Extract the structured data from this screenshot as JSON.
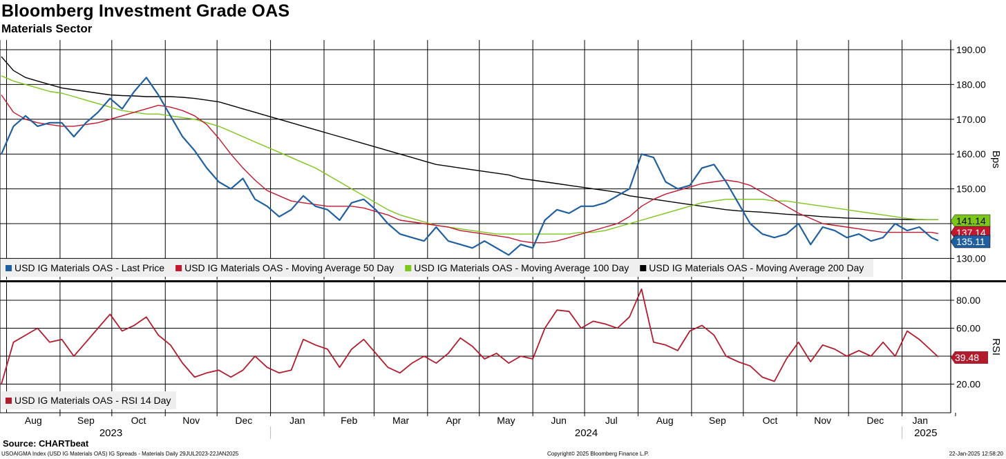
{
  "title": "Bloomberg Investment Grade OAS",
  "subtitle": "Materials Sector",
  "source": "Source: CHARTbeat",
  "footer": {
    "left": "USOAIGMA Index (USD IG Materials OAS) IG Spreads - Materials  Daily 29JUL2023-22JAN2025",
    "center": "Copyright© 2025 Bloomberg Finance L.P.",
    "right": "22-Jan-2025 12:58:20"
  },
  "colors": {
    "last_price": "#1f5fa0",
    "ma50": "#c0182e",
    "ma100": "#7cc51a",
    "ma200": "#000000",
    "rsi": "#b01c2e",
    "grid": "#000000"
  },
  "chart_data": [
    {
      "type": "line",
      "title": "Bloomberg Investment Grade OAS",
      "ylabel": "Bps",
      "ylim": [
        125,
        193
      ],
      "yticks": [
        "190.00",
        "180.00",
        "170.00",
        "160.00",
        "150.00",
        "140.00",
        "130.00"
      ],
      "x": [
        "2023-07-29",
        "2023-08-05",
        "2023-08-12",
        "2023-08-19",
        "2023-08-26",
        "2023-09-02",
        "2023-09-09",
        "2023-09-16",
        "2023-09-23",
        "2023-09-30",
        "2023-10-07",
        "2023-10-14",
        "2023-10-21",
        "2023-10-28",
        "2023-11-04",
        "2023-11-11",
        "2023-11-18",
        "2023-11-25",
        "2023-12-02",
        "2023-12-09",
        "2023-12-16",
        "2023-12-23",
        "2023-12-30",
        "2024-01-06",
        "2024-01-13",
        "2024-01-20",
        "2024-01-27",
        "2024-02-03",
        "2024-02-10",
        "2024-02-17",
        "2024-02-24",
        "2024-03-02",
        "2024-03-09",
        "2024-03-16",
        "2024-03-23",
        "2024-03-30",
        "2024-04-06",
        "2024-04-13",
        "2024-04-20",
        "2024-04-27",
        "2024-05-04",
        "2024-05-11",
        "2024-05-18",
        "2024-05-25",
        "2024-06-01",
        "2024-06-08",
        "2024-06-15",
        "2024-06-22",
        "2024-06-29",
        "2024-07-06",
        "2024-07-13",
        "2024-07-20",
        "2024-07-27",
        "2024-08-03",
        "2024-08-10",
        "2024-08-17",
        "2024-08-24",
        "2024-08-31",
        "2024-09-07",
        "2024-09-14",
        "2024-09-21",
        "2024-09-28",
        "2024-10-05",
        "2024-10-12",
        "2024-10-19",
        "2024-10-26",
        "2024-11-02",
        "2024-11-09",
        "2024-11-16",
        "2024-11-23",
        "2024-11-30",
        "2024-12-07",
        "2024-12-14",
        "2024-12-21",
        "2024-12-28",
        "2025-01-04",
        "2025-01-11",
        "2025-01-18",
        "2025-01-22"
      ],
      "series": [
        {
          "name": "USD IG Materials OAS - Last Price",
          "color": "#1f5fa0",
          "values": [
            160,
            168,
            171,
            168,
            169,
            169,
            165,
            169,
            172,
            176,
            173,
            178,
            182,
            177,
            171,
            165,
            161,
            156,
            152,
            150,
            153,
            147,
            145,
            142,
            144,
            148,
            145,
            144,
            141,
            146,
            147,
            144,
            140,
            137,
            136,
            135,
            139,
            135,
            134,
            133,
            135,
            133,
            131,
            134,
            133,
            141,
            144,
            143,
            145,
            145,
            146,
            148,
            150,
            160,
            159,
            152,
            150,
            151,
            156,
            157,
            152,
            146,
            140,
            137,
            136,
            137,
            140,
            134,
            139,
            138,
            136,
            137,
            135,
            136,
            140,
            138,
            139,
            136,
            135.11
          ]
        },
        {
          "name": "USD IG Materials OAS - Moving Average 50 Day",
          "color": "#c0182e",
          "values": [
            177,
            172,
            170,
            169,
            168.5,
            168,
            168,
            168.5,
            169,
            170,
            171,
            172,
            173,
            174,
            173.5,
            172.5,
            171,
            168.5,
            164.5,
            160,
            156,
            152.5,
            149.5,
            148,
            146.5,
            146,
            145.5,
            145,
            145,
            145,
            144.5,
            143.5,
            142.5,
            141,
            140.5,
            140,
            139.5,
            139,
            138,
            137.5,
            137,
            136.5,
            136,
            135,
            134.5,
            134.5,
            135,
            136,
            137,
            138,
            139,
            140,
            142,
            145,
            147,
            148.5,
            149.5,
            150.5,
            151.5,
            152,
            152.5,
            152,
            151,
            149,
            147,
            145,
            143,
            141.5,
            140,
            139.5,
            139,
            138.5,
            138,
            137.5,
            137.5,
            137.5,
            137.5,
            137.5,
            137.14
          ]
        },
        {
          "name": "USD IG Materials OAS - Moving Average 100 Day",
          "color": "#7cc51a",
          "values": [
            182.5,
            181,
            180,
            179,
            178,
            177.5,
            176.5,
            175.5,
            174.5,
            173.5,
            172.5,
            172,
            171.5,
            171.5,
            171,
            170.5,
            170,
            169,
            168,
            166.5,
            165,
            163.5,
            162,
            160.5,
            159,
            157.5,
            156,
            154,
            152,
            150,
            148,
            146,
            144,
            142.5,
            141.5,
            140.5,
            139.5,
            139,
            138.5,
            138,
            137.5,
            137,
            137,
            137,
            137,
            137,
            137,
            137,
            137.5,
            137.5,
            138,
            139,
            140,
            141,
            142,
            143,
            144,
            145,
            146,
            146.5,
            147,
            147,
            147,
            147,
            146.5,
            146.5,
            146,
            145.5,
            145,
            144.5,
            144,
            143.5,
            143,
            142.5,
            142,
            141.5,
            141.2,
            141.14,
            141.14
          ]
        },
        {
          "name": "USD IG Materials OAS - Moving Average 200 Day",
          "color": "#000000",
          "values": [
            188,
            184,
            182,
            181,
            180,
            179,
            178.5,
            178,
            177.5,
            177,
            176.8,
            176.7,
            176.5,
            176.5,
            176.5,
            176.3,
            176,
            175.5,
            175,
            174,
            173,
            172,
            171,
            170,
            169,
            168,
            167,
            166,
            165,
            164,
            163,
            162,
            161,
            160,
            159,
            158,
            157,
            156.5,
            156,
            155.5,
            155,
            154.5,
            154,
            153,
            152.5,
            152,
            151.5,
            151,
            150.5,
            150,
            149.5,
            149,
            148,
            147.5,
            147,
            146.5,
            146,
            145.5,
            145,
            144.5,
            144,
            143.7,
            143.5,
            143.3,
            143,
            142.7,
            142.5,
            142.3,
            142,
            141.8,
            141.6,
            141.5,
            141.4,
            141.3,
            141.3,
            141.2,
            141.2,
            141.14,
            141.14
          ]
        }
      ],
      "last_value_labels": [
        "141.14",
        "137.14",
        "135.11"
      ],
      "legend_position": "bottom-left"
    },
    {
      "type": "line",
      "ylabel": "RSI",
      "ylim": [
        12,
        92
      ],
      "yticks": [
        "80.00",
        "60.00",
        "40.00",
        "20.00"
      ],
      "series": [
        {
          "name": "USD IG Materials OAS - RSI 14 Day",
          "color": "#b01c2e",
          "values": [
            20,
            50,
            55,
            60,
            50,
            52,
            40,
            50,
            60,
            70,
            58,
            62,
            68,
            55,
            48,
            35,
            25,
            28,
            30,
            25,
            30,
            40,
            32,
            28,
            30,
            52,
            48,
            45,
            32,
            45,
            52,
            42,
            32,
            28,
            35,
            40,
            35,
            42,
            53,
            47,
            38,
            42,
            35,
            40,
            38,
            60,
            73,
            72,
            60,
            65,
            63,
            60,
            68,
            88,
            50,
            48,
            44,
            58,
            62,
            55,
            40,
            36,
            33,
            25,
            22,
            38,
            50,
            36,
            48,
            45,
            40,
            44,
            40,
            50,
            40,
            58,
            52,
            44,
            39.48
          ]
        }
      ],
      "last_value_labels": [
        "39.48"
      ],
      "legend_position": "bottom-left"
    }
  ],
  "x_axis": {
    "months": [
      "Aug",
      "Sep",
      "Oct",
      "Nov",
      "Dec",
      "Jan",
      "Feb",
      "Mar",
      "Apr",
      "May",
      "Jun",
      "Jul",
      "Aug",
      "Sep",
      "Oct",
      "Nov",
      "Dec",
      "Jan"
    ],
    "years": [
      "2023",
      "2024",
      "2025"
    ]
  }
}
